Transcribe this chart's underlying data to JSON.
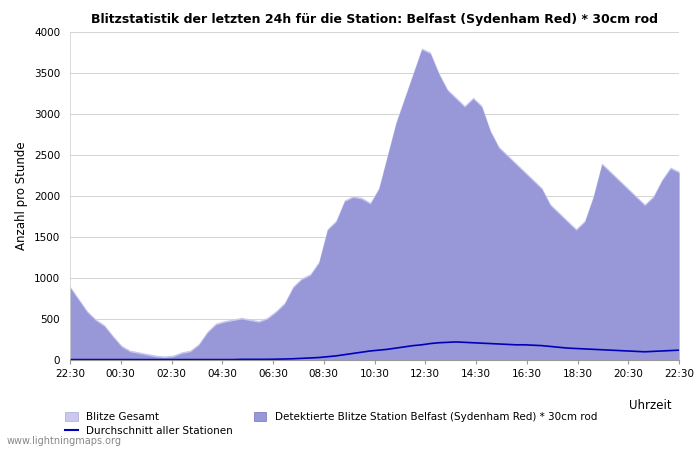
{
  "title": "Blitzstatistik der letzten 24h für die Station: Belfast (Sydenham Red) * 30cm rod",
  "xlabel": "Uhrzeit",
  "ylabel": "Anzahl pro Stunde",
  "ylim": [
    0,
    4000
  ],
  "yticks": [
    0,
    500,
    1000,
    1500,
    2000,
    2500,
    3000,
    3500,
    4000
  ],
  "background_color": "#ffffff",
  "plot_bg_color": "#ffffff",
  "fill_color_gesamt": "#c8c8f0",
  "fill_color_station": "#9898d8",
  "line_color_avg": "#0000bb",
  "watermark": "www.lightningmaps.org",
  "legend_items": [
    "Blitze Gesamt",
    "Detektierte Blitze Station Belfast (Sydenham Red) * 30cm rod",
    "Durchschnitt aller Stationen"
  ],
  "x_labels": [
    "22:30",
    "00:30",
    "02:30",
    "04:30",
    "06:30",
    "08:30",
    "10:30",
    "12:30",
    "14:30",
    "16:30",
    "18:30",
    "20:30",
    "22:30"
  ],
  "gesamt": [
    900,
    750,
    600,
    500,
    430,
    300,
    180,
    120,
    100,
    80,
    60,
    50,
    60,
    100,
    120,
    200,
    350,
    450,
    480,
    500,
    520,
    500,
    480,
    520,
    600,
    700,
    900,
    1000,
    1050,
    1200,
    1600,
    1700,
    1950,
    2000,
    1980,
    1920,
    2100,
    2500,
    2900,
    3200,
    3500,
    3800,
    3750,
    3500,
    3300,
    3200,
    3100,
    3200,
    3100,
    2800,
    2600,
    2500,
    2400,
    2300,
    2200,
    2100,
    1900,
    1800,
    1700,
    1600,
    1700,
    2000,
    2400,
    2300,
    2200,
    2100,
    2000,
    1900,
    2000,
    2200,
    2350,
    2300
  ],
  "station": [
    880,
    730,
    580,
    480,
    410,
    280,
    160,
    100,
    80,
    60,
    40,
    30,
    40,
    80,
    100,
    180,
    330,
    430,
    460,
    480,
    500,
    480,
    460,
    500,
    580,
    680,
    880,
    980,
    1030,
    1180,
    1580,
    1680,
    1930,
    1980,
    1960,
    1900,
    2080,
    2480,
    2880,
    3180,
    3480,
    3780,
    3730,
    3480,
    3280,
    3180,
    3080,
    3180,
    3080,
    2780,
    2580,
    2480,
    2380,
    2280,
    2180,
    2080,
    1880,
    1780,
    1680,
    1580,
    1680,
    1980,
    2380,
    2280,
    2180,
    2080,
    1980,
    1880,
    1980,
    2180,
    2330,
    2280
  ],
  "avg": [
    5,
    5,
    5,
    5,
    5,
    5,
    5,
    5,
    5,
    5,
    5,
    5,
    5,
    5,
    5,
    5,
    5,
    5,
    5,
    5,
    8,
    8,
    8,
    8,
    10,
    12,
    15,
    20,
    25,
    30,
    40,
    50,
    65,
    80,
    95,
    110,
    120,
    130,
    145,
    160,
    175,
    185,
    200,
    210,
    215,
    220,
    215,
    210,
    205,
    200,
    195,
    190,
    185,
    185,
    180,
    175,
    165,
    155,
    145,
    140,
    135,
    130,
    125,
    120,
    115,
    110,
    105,
    100,
    105,
    110,
    115,
    120
  ]
}
